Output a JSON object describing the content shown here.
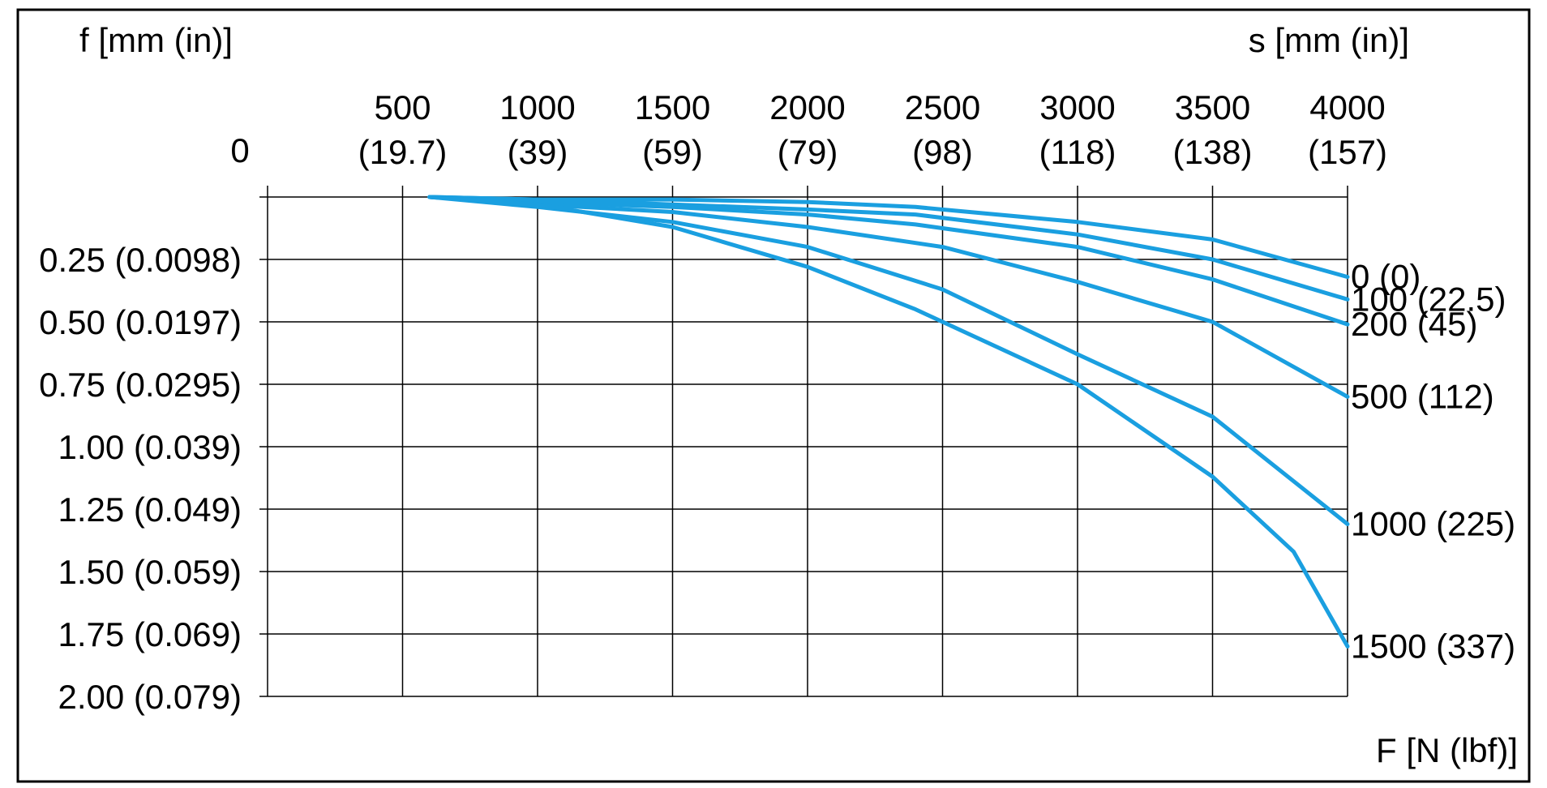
{
  "chart_data": {
    "type": "line",
    "y_axis_title": "f [mm (in)]",
    "x_axis_title": "s [mm (in)]",
    "legend_title": "F [N (lbf)]",
    "x_origin_label": "0",
    "x_ticks": [
      {
        "value": 500,
        "mm": "500",
        "in": "(19.7)"
      },
      {
        "value": 1000,
        "mm": "1000",
        "in": "(39)"
      },
      {
        "value": 1500,
        "mm": "1500",
        "in": "(59)"
      },
      {
        "value": 2000,
        "mm": "2000",
        "in": "(79)"
      },
      {
        "value": 2500,
        "mm": "2500",
        "in": "(98)"
      },
      {
        "value": 3000,
        "mm": "3000",
        "in": "(118)"
      },
      {
        "value": 3500,
        "mm": "3500",
        "in": "(138)"
      },
      {
        "value": 4000,
        "mm": "4000",
        "in": "(157)"
      }
    ],
    "y_ticks": [
      {
        "value": 0.25,
        "label": "0.25 (0.0098)"
      },
      {
        "value": 0.5,
        "label": "0.50 (0.0197)"
      },
      {
        "value": 0.75,
        "label": "0.75 (0.0295)"
      },
      {
        "value": 1.0,
        "label": "1.00 (0.039)"
      },
      {
        "value": 1.25,
        "label": "1.25 (0.049)"
      },
      {
        "value": 1.5,
        "label": "1.50 (0.059)"
      },
      {
        "value": 1.75,
        "label": "1.75 (0.069)"
      },
      {
        "value": 2.0,
        "label": "2.00 (0.079)"
      }
    ],
    "xlim": [
      0,
      4000
    ],
    "ylim": [
      0,
      2.0
    ],
    "y_inverted": true,
    "grid": true,
    "line_color": "#1a9fe0",
    "series": [
      {
        "name": "0 (0)",
        "x": [
          600,
          1000,
          1500,
          2000,
          2400,
          2600,
          3000,
          3500,
          4000
        ],
        "y": [
          0.0,
          0.01,
          0.01,
          0.02,
          0.04,
          0.06,
          0.1,
          0.17,
          0.32
        ]
      },
      {
        "name": "100 (22.5)",
        "x": [
          600,
          1000,
          1500,
          2000,
          2400,
          3000,
          3500,
          4000
        ],
        "y": [
          0.0,
          0.01,
          0.03,
          0.05,
          0.07,
          0.15,
          0.25,
          0.41
        ]
      },
      {
        "name": "200 (45)",
        "x": [
          600,
          1000,
          1500,
          2000,
          2400,
          3000,
          3500,
          4000
        ],
        "y": [
          0.0,
          0.02,
          0.04,
          0.07,
          0.11,
          0.2,
          0.33,
          0.51
        ]
      },
      {
        "name": "500 (112)",
        "x": [
          600,
          1000,
          1500,
          2000,
          2500,
          3000,
          3500,
          4000
        ],
        "y": [
          0.0,
          0.03,
          0.06,
          0.12,
          0.2,
          0.34,
          0.5,
          0.8
        ]
      },
      {
        "name": "1000 (225)",
        "x": [
          600,
          1000,
          1500,
          2000,
          2500,
          3000,
          3500,
          4000
        ],
        "y": [
          0.0,
          0.04,
          0.1,
          0.2,
          0.37,
          0.63,
          0.88,
          1.31
        ]
      },
      {
        "name": "1500 (337)",
        "x": [
          600,
          1000,
          1500,
          2000,
          2400,
          3000,
          3500,
          3800,
          4000
        ],
        "y": [
          0.0,
          0.03,
          0.12,
          0.28,
          0.45,
          0.75,
          1.12,
          1.42,
          1.8
        ]
      }
    ]
  }
}
